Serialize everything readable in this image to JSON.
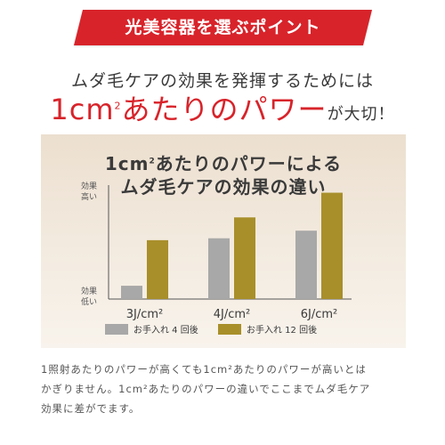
{
  "banner": {
    "label": "光美容器を選ぶポイント"
  },
  "lead": {
    "line1": "ムダ毛ケアの効果を発揮するためには",
    "emph_num": "1cm",
    "emph_sup": "2",
    "emph_text": "あたりのパワー",
    "tail": "が大切！"
  },
  "chart_title": {
    "line1_a": "1cm",
    "line1_sup": "2",
    "line1_b": "あたりのパワーによる",
    "line2": "ムダ毛ケアの効果の違い"
  },
  "chart_data": {
    "type": "bar",
    "categories": [
      "3J/cm²",
      "4J/cm²",
      "6J/cm²"
    ],
    "series": [
      {
        "name": "お手入れ 4 回後",
        "color": "#a8a8a8",
        "values": [
          0.7,
          3.2,
          3.6
        ]
      },
      {
        "name": "お手入れ 12 回後",
        "color": "#a88f2a",
        "values": [
          3.1,
          4.3,
          5.6
        ]
      }
    ],
    "ylim": [
      0,
      6
    ],
    "ytick_top": [
      "効果",
      "高い"
    ],
    "ytick_bottom": [
      "効果",
      "低い"
    ]
  },
  "note": {
    "line1": "1照射あたりのパワーが高くても1cm²あたりのパワーが高いとは",
    "line2": "かぎりません。1cm²あたりのパワーの違いでここまでムダ毛ケア",
    "line3": "効果に差がでます。"
  }
}
